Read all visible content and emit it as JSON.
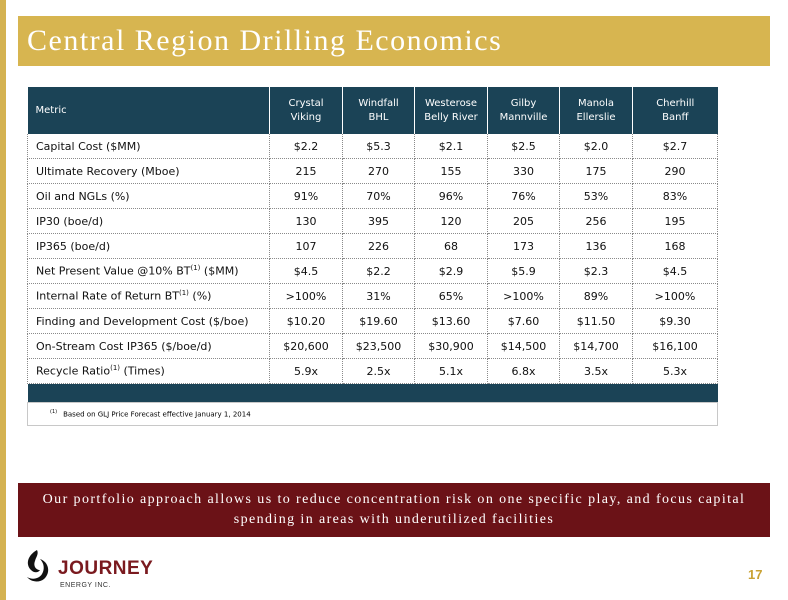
{
  "slide": {
    "title": "Central Region Drilling Economics",
    "page_number": "17"
  },
  "table": {
    "metric_header": "Metric",
    "columns": [
      {
        "line1": "Crystal",
        "line2": "Viking"
      },
      {
        "line1": "Windfall",
        "line2": "BHL"
      },
      {
        "line1": "Westerose",
        "line2": "Belly River"
      },
      {
        "line1": "Gilby",
        "line2": "Mannville"
      },
      {
        "line1": "Manola",
        "line2": "Ellerslie"
      },
      {
        "line1": "Cherhill",
        "line2": "Banff"
      }
    ],
    "rows": [
      {
        "label": "Capital Cost ($MM)",
        "values": [
          "$2.2",
          "$5.3",
          "$2.1",
          "$2.5",
          "$2.0",
          "$2.7"
        ]
      },
      {
        "label": "Ultimate Recovery (Mboe)",
        "values": [
          "215",
          "270",
          "155",
          "330",
          "175",
          "290"
        ]
      },
      {
        "label": "Oil and NGLs (%)",
        "values": [
          "91%",
          "70%",
          "96%",
          "76%",
          "53%",
          "83%"
        ]
      },
      {
        "label": "IP30 (boe/d)",
        "values": [
          "130",
          "395",
          "120",
          "205",
          "256",
          "195"
        ]
      },
      {
        "label": "IP365 (boe/d)",
        "values": [
          "107",
          "226",
          "68",
          "173",
          "136",
          "168"
        ]
      },
      {
        "label_pre": "Net Present Value @10% BT",
        "label_sup": "(1)",
        "label_post": " ($MM)",
        "values": [
          "$4.5",
          "$2.2",
          "$2.9",
          "$5.9",
          "$2.3",
          "$4.5"
        ]
      },
      {
        "label_pre": "Internal Rate of Return BT",
        "label_sup": "(1)",
        "label_post": " (%)",
        "values": [
          ">100%",
          "31%",
          "65%",
          ">100%",
          "89%",
          ">100%"
        ]
      },
      {
        "label": "Finding and Development Cost ($/boe)",
        "values": [
          "$10.20",
          "$19.60",
          "$13.60",
          "$7.60",
          "$11.50",
          "$9.30"
        ]
      },
      {
        "label": "On-Stream Cost IP365 ($/boe/d)",
        "values": [
          "$20,600",
          "$23,500",
          "$30,900",
          "$14,500",
          "$14,700",
          "$16,100"
        ]
      },
      {
        "label_pre": "Recycle Ratio",
        "label_sup": "(1)",
        "label_post": " (Times)",
        "values": [
          "5.9x",
          "2.5x",
          "5.1x",
          "6.8x",
          "3.5x",
          "5.3x"
        ]
      }
    ],
    "footnote_marker": "(1)",
    "footnote_text": "Based on GLJ Price Forecast effective January 1, 2014"
  },
  "banner": {
    "text": "Our portfolio approach allows us to reduce concentration risk on one specific play, and focus capital spending in areas with underutilized facilities"
  },
  "logo": {
    "word": "JOURNEY",
    "sub": "ENERGY INC.",
    "colors": {
      "mark": "#111111",
      "word": "#7a1a1f"
    }
  },
  "theme": {
    "gold": "#d7b550",
    "header_teal": "#1b4356",
    "banner_maroon": "#6b1217"
  }
}
